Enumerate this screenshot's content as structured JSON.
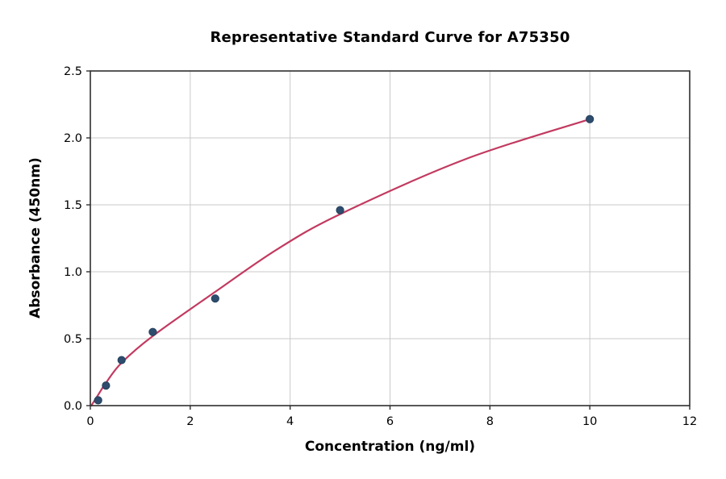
{
  "chart_data": {
    "type": "scatter",
    "title": "Representative Standard Curve for A75350",
    "xlabel": "Concentration (ng/ml)",
    "ylabel": "Absorbance (450nm)",
    "xlim": [
      0,
      12
    ],
    "ylim": [
      0,
      2.5
    ],
    "xtick_labels": [
      "0",
      "2",
      "4",
      "6",
      "8",
      "10",
      "12"
    ],
    "ytick_labels": [
      "0.0",
      "0.5",
      "1.0",
      "1.5",
      "2.0",
      "2.5"
    ],
    "grid": "on",
    "legend": "none",
    "series": [
      {
        "name": "standards",
        "style": "scatter",
        "points": [
          {
            "x": 0.156,
            "y": 0.04
          },
          {
            "x": 0.313,
            "y": 0.15
          },
          {
            "x": 0.625,
            "y": 0.34
          },
          {
            "x": 1.25,
            "y": 0.55
          },
          {
            "x": 2.5,
            "y": 0.8
          },
          {
            "x": 5,
            "y": 1.46
          },
          {
            "x": 10,
            "y": 2.14
          }
        ]
      },
      {
        "name": "fitted-curve",
        "style": "line",
        "points": [
          {
            "x": 0.02,
            "y": 0.0
          },
          {
            "x": 0.156,
            "y": 0.08
          },
          {
            "x": 0.313,
            "y": 0.17
          },
          {
            "x": 0.625,
            "y": 0.32
          },
          {
            "x": 1.25,
            "y": 0.52
          },
          {
            "x": 2.5,
            "y": 0.85
          },
          {
            "x": 3.75,
            "y": 1.17
          },
          {
            "x": 5,
            "y": 1.43
          },
          {
            "x": 7.5,
            "y": 1.84
          },
          {
            "x": 10,
            "y": 2.14
          }
        ]
      }
    ],
    "colors": {
      "point_fill": "#2e4d6e",
      "point_edge": "#243f5c",
      "curve": "#c23a60",
      "grid": "#c9c9c9",
      "spine": "#2f2f2f",
      "text": "#000000"
    }
  }
}
